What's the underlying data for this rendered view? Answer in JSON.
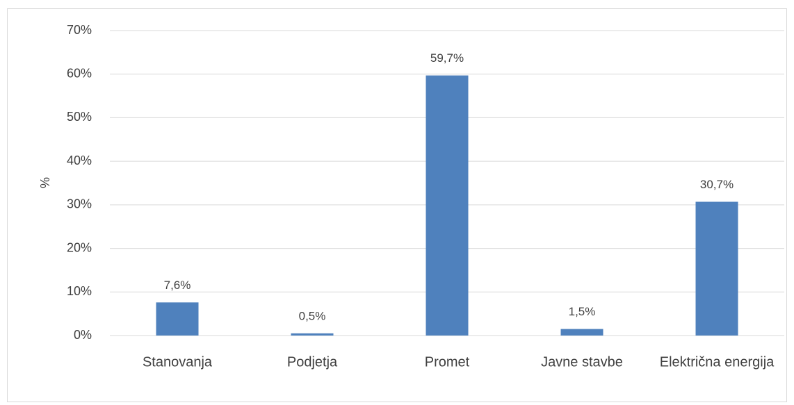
{
  "chart_data": {
    "type": "bar",
    "y_label": "%",
    "categories": [
      "Stanovanja",
      "Podjetja",
      "Promet",
      "Javne stavbe",
      "Električna energija"
    ],
    "values": [
      7.6,
      0.5,
      59.7,
      1.5,
      30.7
    ],
    "value_labels": [
      "7,6%",
      "0,5%",
      "59,7%",
      "1,5%",
      "30,7%"
    ],
    "color": "#4f81bd",
    "ylim": [
      0,
      70
    ],
    "yticks": [
      {
        "value": 0,
        "label": "0%"
      },
      {
        "value": 10,
        "label": "10%"
      },
      {
        "value": 20,
        "label": "20%"
      },
      {
        "value": 30,
        "label": "30%"
      },
      {
        "value": 40,
        "label": "40%"
      },
      {
        "value": 50,
        "label": "50%"
      },
      {
        "value": 60,
        "label": "60%"
      },
      {
        "value": 70,
        "label": "70%"
      }
    ],
    "grid": true
  }
}
